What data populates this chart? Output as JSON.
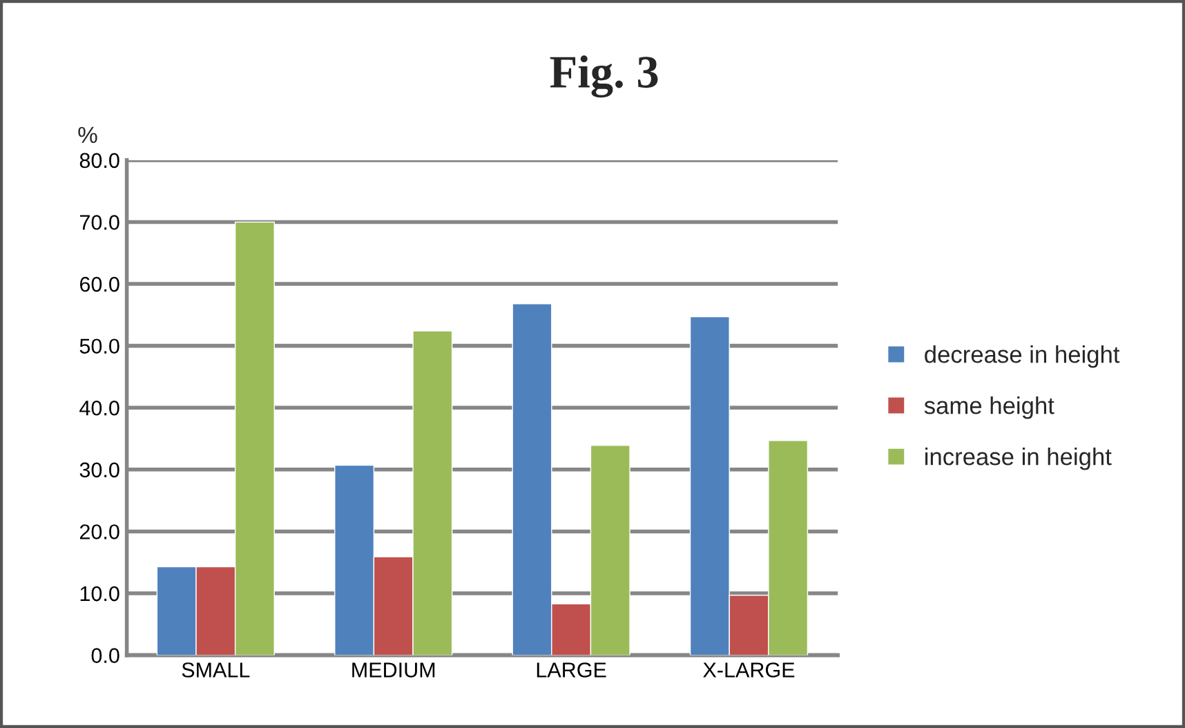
{
  "chart_data": {
    "type": "bar",
    "title": "Fig. 3",
    "ylabel": "%",
    "categories": [
      "SMALL",
      "MEDIUM",
      "LARGE",
      "X-LARGE"
    ],
    "series": [
      {
        "name": "decrease in height",
        "color": "#4f81bd",
        "values": [
          14.3,
          30.7,
          56.8,
          54.7
        ]
      },
      {
        "name": "same height",
        "color": "#c0504d",
        "values": [
          14.3,
          15.9,
          8.3,
          9.7
        ]
      },
      {
        "name": "increase in height",
        "color": "#9bbb59",
        "values": [
          70.0,
          52.4,
          33.9,
          34.7
        ]
      }
    ],
    "ylim": [
      0,
      80
    ],
    "yticks": [
      {
        "value": 0,
        "label": "0.0"
      },
      {
        "value": 10,
        "label": "10.0"
      },
      {
        "value": 20,
        "label": "20.0"
      },
      {
        "value": 30,
        "label": "30.0"
      },
      {
        "value": 40,
        "label": "40.0"
      },
      {
        "value": 50,
        "label": "50.0"
      },
      {
        "value": 60,
        "label": "60.0"
      },
      {
        "value": 70,
        "label": "70.0"
      },
      {
        "value": 80,
        "label": "80.0"
      }
    ],
    "grid": "y",
    "legend": "right"
  }
}
